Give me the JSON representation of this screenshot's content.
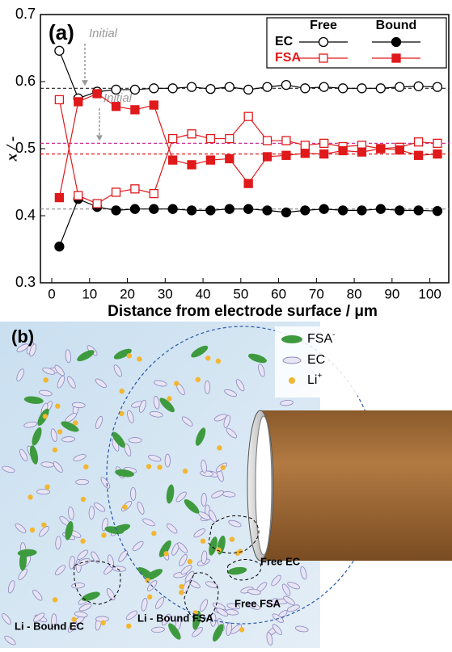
{
  "chart_data": {
    "type": "line",
    "panel_label": "(a)",
    "xlabel": "Distance from electrode surface / μm",
    "ylabel": "x / -",
    "x": [
      2,
      7,
      12,
      17,
      22,
      27,
      32,
      37,
      42,
      47,
      52,
      57,
      62,
      67,
      72,
      77,
      82,
      87,
      92,
      97,
      102
    ],
    "columns": [
      {
        "label": "Free",
        "filled": false
      },
      {
        "label": "Bound",
        "filled": true
      }
    ],
    "series": [
      {
        "name": "EC",
        "color": "#000000",
        "marker": "circle",
        "values": [
          [
            0.646,
            0.575,
            0.585,
            0.588,
            0.588,
            0.59,
            0.59,
            0.592,
            0.589,
            0.592,
            0.588,
            0.592,
            0.595,
            0.59,
            0.592,
            0.59,
            0.59,
            0.59,
            0.592,
            0.593,
            0.592
          ],
          [
            0.354,
            0.425,
            0.413,
            0.408,
            0.41,
            0.41,
            0.41,
            0.408,
            0.408,
            0.41,
            0.41,
            0.408,
            0.405,
            0.408,
            0.41,
            0.408,
            0.408,
            0.41,
            0.408,
            0.408,
            0.407
          ]
        ]
      },
      {
        "name": "FSA",
        "color": "#e0191b",
        "marker": "square",
        "values": [
          [
            0.573,
            0.43,
            0.418,
            0.435,
            0.44,
            0.433,
            0.515,
            0.522,
            0.515,
            0.515,
            0.548,
            0.512,
            0.512,
            0.505,
            0.508,
            0.503,
            0.505,
            0.5,
            0.502,
            0.51,
            0.508
          ],
          [
            0.427,
            0.57,
            0.582,
            0.563,
            0.558,
            0.565,
            0.483,
            0.476,
            0.483,
            0.485,
            0.448,
            0.488,
            0.49,
            0.493,
            0.492,
            0.497,
            0.495,
            0.5,
            0.498,
            0.49,
            0.492
          ]
        ]
      }
    ],
    "reference_lines": [
      {
        "value": 0.59,
        "color": "#222222"
      },
      {
        "value": 0.41,
        "color": "#888888"
      },
      {
        "value": 0.508,
        "color": "#d0309a"
      },
      {
        "value": 0.492,
        "color": "#e0191b"
      }
    ],
    "annotations": [
      {
        "text": "Initial",
        "target": 0.59
      },
      {
        "text": "Initial",
        "target": 0.508
      }
    ],
    "xlim": [
      -3,
      105
    ],
    "xticks": [
      0,
      10,
      20,
      30,
      40,
      50,
      60,
      70,
      80,
      90,
      100
    ],
    "ylim": [
      0.3,
      0.7
    ],
    "yticks": [
      0.3,
      0.4,
      0.5,
      0.6,
      0.7
    ]
  },
  "panel_b": {
    "label": "(b)",
    "legend": [
      {
        "text": "FSA",
        "sup": "-"
      },
      {
        "text": "EC",
        "sup": null
      },
      {
        "text": "Li",
        "sup": "+"
      }
    ],
    "annotations": [
      "Free EC",
      "Free FSA",
      "Li - Bound EC",
      "Li - Bound FSA"
    ]
  }
}
